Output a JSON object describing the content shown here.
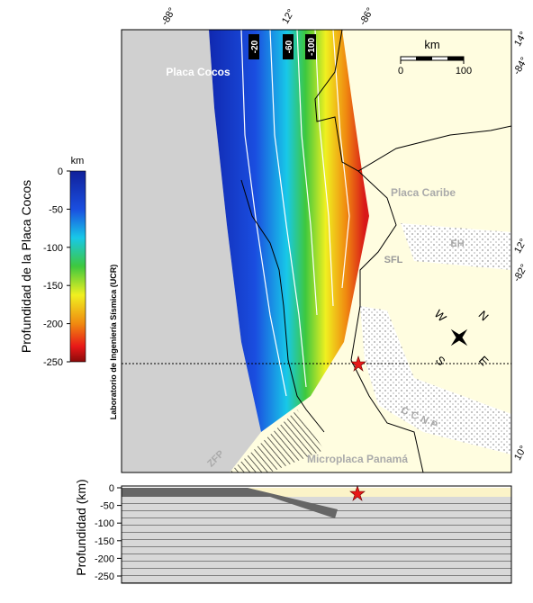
{
  "colorbar": {
    "title": "Profundidad de la Placa Cocos",
    "unit": "km",
    "ticks": [
      0,
      -50,
      -100,
      -150,
      -200,
      -250
    ]
  },
  "map": {
    "coord_labels": {
      "top": [
        "-88°",
        "12°",
        "-86°"
      ],
      "right": [
        "14°",
        "-84°",
        "12°",
        "-82°",
        "10°"
      ]
    },
    "contour_labels": [
      "-20",
      "-60",
      "-100"
    ],
    "labels": {
      "cocos": "Placa Cocos",
      "caribe": "Placa Caribe",
      "eh": "EH",
      "sfl": "SFL",
      "panama": "Microplaca Panamá",
      "zfp": "ZFP",
      "ccnp": "CCNP"
    },
    "credit": "Laboratorio de Ingeniería Sísmica (UCR)",
    "scale": {
      "unit": "km",
      "ticks": [
        0,
        100
      ]
    },
    "compass": {
      "n": "N",
      "e": "E",
      "s": "S",
      "w": "W"
    }
  },
  "section": {
    "ylabel": "Profundidad (km)",
    "yticks": [
      0,
      -50,
      -100,
      -150,
      -200,
      -250
    ]
  }
}
